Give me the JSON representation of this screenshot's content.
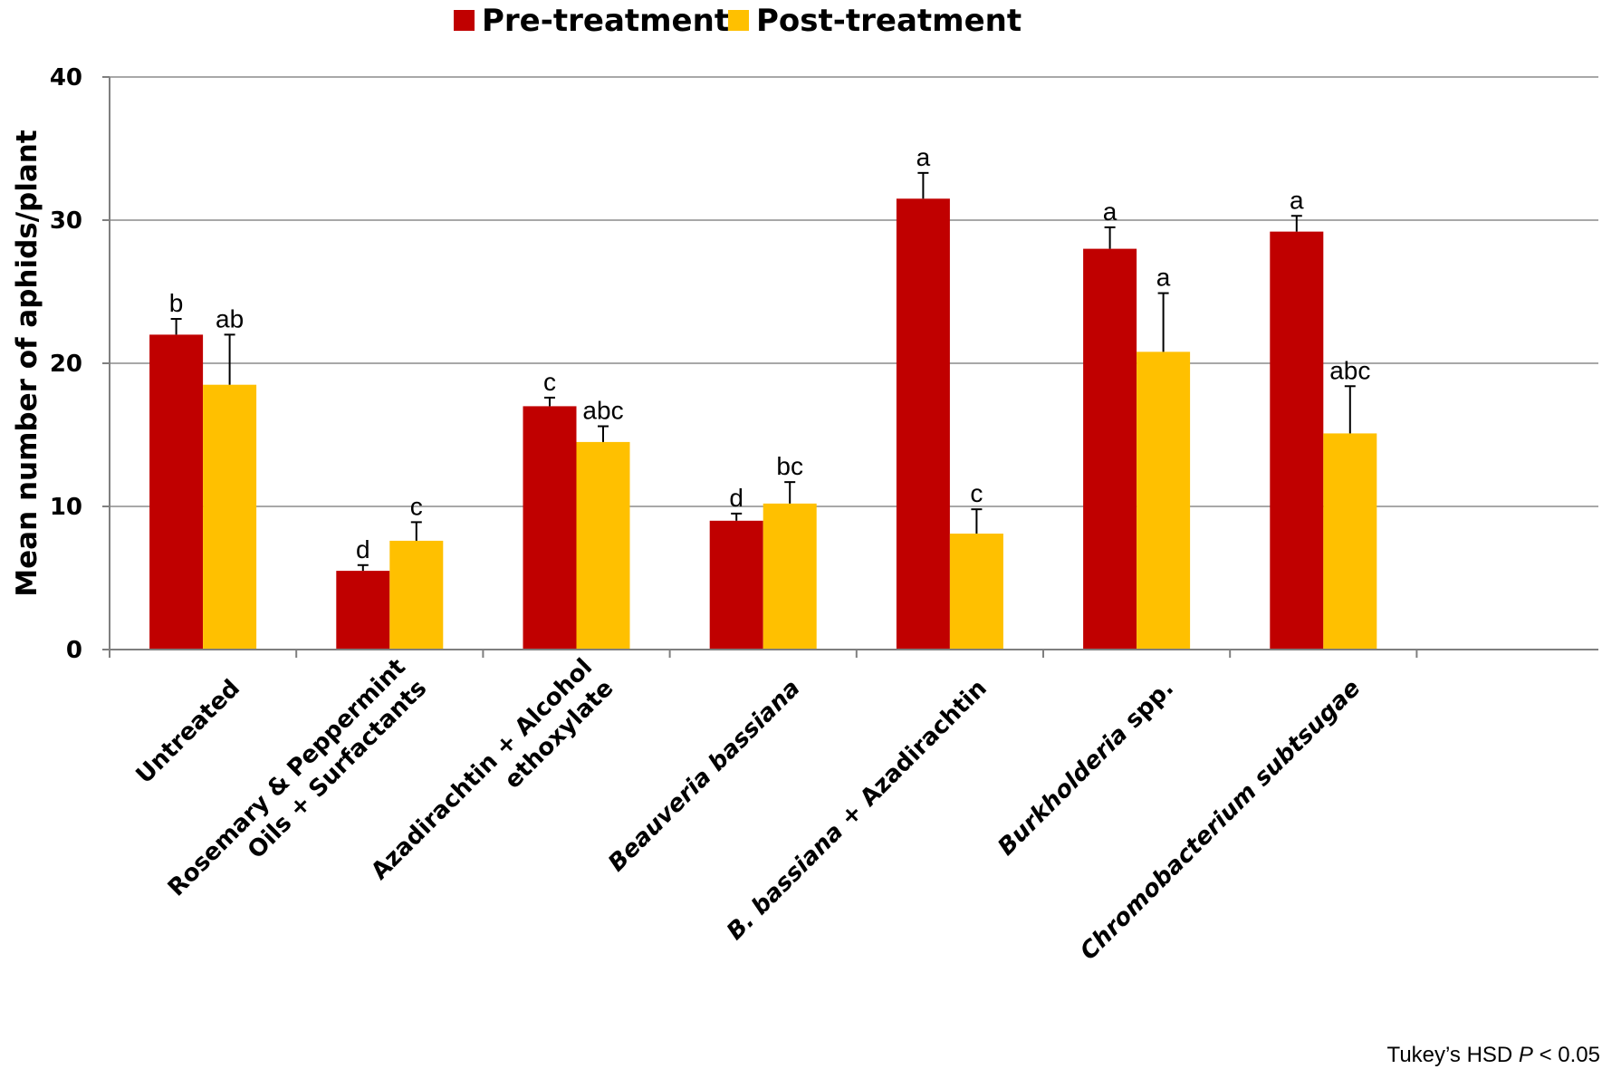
{
  "footnote": {
    "prefix": "Tukey’s HSD ",
    "p_label": "P",
    "suffix": " < 0.05"
  },
  "colors": {
    "pre": "#c00000",
    "post": "#ffc000",
    "grid": "#8c8c8c",
    "axis": "#7f7f7f"
  },
  "chart_data": {
    "type": "bar",
    "title": "",
    "xlabel": "",
    "ylabel": "Mean number of aphids/plant",
    "ylim": [
      0,
      40
    ],
    "yticks": [
      0,
      10,
      20,
      30,
      40
    ],
    "grid": true,
    "legend_position": "top-center",
    "categories": [
      {
        "lines": [
          [
            {
              "text": "Untreated",
              "italic": false
            }
          ]
        ]
      },
      {
        "lines": [
          [
            {
              "text": "Rosemary & Peppermint",
              "italic": false
            }
          ],
          [
            {
              "text": "Oils + Surfactants",
              "italic": false
            }
          ]
        ]
      },
      {
        "lines": [
          [
            {
              "text": "Azadirachtin + Alcohol",
              "italic": false
            }
          ],
          [
            {
              "text": "ethoxylate",
              "italic": false
            }
          ]
        ]
      },
      {
        "lines": [
          [
            {
              "text": "Beauveria bassiana",
              "italic": true
            }
          ]
        ]
      },
      {
        "lines": [
          [
            {
              "text": "B. bassiana",
              "italic": true
            },
            {
              "text": " + Azadirachtin",
              "italic": false
            }
          ]
        ]
      },
      {
        "lines": [
          [
            {
              "text": "Burkholderia",
              "italic": true
            },
            {
              "text": " spp.",
              "italic": false
            }
          ]
        ]
      },
      {
        "lines": [
          [
            {
              "text": "Chromobacterium subtsugae",
              "italic": true
            }
          ]
        ]
      }
    ],
    "series": [
      {
        "name": "Pre-treatment",
        "color": "#c00000",
        "values": [
          22.0,
          5.5,
          17.0,
          9.0,
          31.5,
          28.0,
          29.2
        ],
        "errors": [
          1.1,
          0.4,
          0.6,
          0.5,
          1.8,
          1.5,
          1.1
        ],
        "letters": [
          "b",
          "d",
          "c",
          "d",
          "a",
          "a",
          "a"
        ]
      },
      {
        "name": "Post-treatment",
        "color": "#ffc000",
        "values": [
          18.5,
          7.6,
          14.5,
          10.2,
          8.1,
          20.8,
          15.1
        ],
        "errors": [
          3.5,
          1.3,
          1.1,
          1.5,
          1.7,
          4.1,
          3.3
        ],
        "letters": [
          "ab",
          "c",
          "abc",
          "bc",
          "c",
          "a",
          "abc"
        ]
      }
    ]
  }
}
